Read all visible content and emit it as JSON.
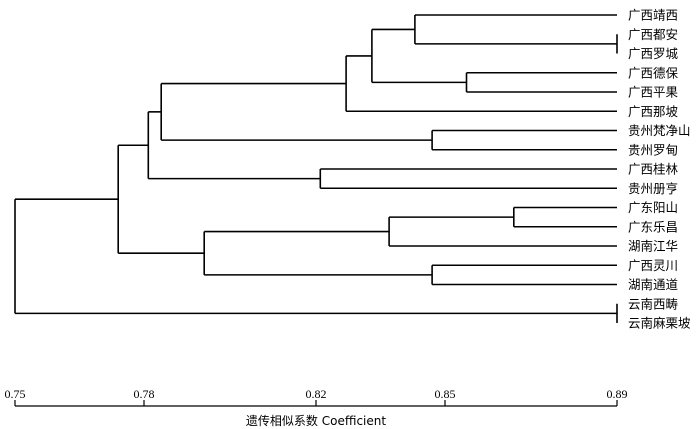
{
  "chart_data": {
    "type": "dendrogram",
    "xlabel": "遗传相似系数 Coefficient",
    "xlim": [
      0.75,
      0.89
    ],
    "ticks": [
      "0.75",
      "0.78",
      "0.82",
      "0.85",
      "0.89"
    ],
    "leaves": [
      "广西靖西",
      "广西都安",
      "广西罗城",
      "广西德保",
      "广西平果",
      "广西那坡",
      "贵州梵净山",
      "贵州罗甸",
      "广西桂林",
      "贵州册亨",
      "广东阳山",
      "广东乐昌",
      "湖南江华",
      "广西灵川",
      "湖南通道",
      "云南西畴",
      "云南麻栗坡"
    ],
    "merges": [
      {
        "id": "c1",
        "left": "广西都安",
        "right": "广西罗城",
        "height": 0.89
      },
      {
        "id": "c2",
        "left": "广西靖西",
        "right": "c1",
        "height": 0.843
      },
      {
        "id": "c3",
        "left": "广西德保",
        "right": "广西平果",
        "height": 0.855
      },
      {
        "id": "c4",
        "left": "c2",
        "right": "c3",
        "height": 0.833
      },
      {
        "id": "c5",
        "left": "c4",
        "right": "广西那坡",
        "height": 0.827
      },
      {
        "id": "c6",
        "left": "贵州梵净山",
        "right": "贵州罗甸",
        "height": 0.847
      },
      {
        "id": "c7",
        "left": "c5",
        "right": "c6",
        "height": 0.784
      },
      {
        "id": "c8",
        "left": "广西桂林",
        "right": "贵州册亨",
        "height": 0.821
      },
      {
        "id": "c9",
        "left": "c7",
        "right": "c8",
        "height": 0.781
      },
      {
        "id": "c10",
        "left": "广东阳山",
        "right": "广东乐昌",
        "height": 0.866
      },
      {
        "id": "c11",
        "left": "c10",
        "right": "湖南江华",
        "height": 0.837
      },
      {
        "id": "c12",
        "left": "广西灵川",
        "right": "湖南通道",
        "height": 0.847
      },
      {
        "id": "c13",
        "left": "c11",
        "right": "c12",
        "height": 0.794
      },
      {
        "id": "c14",
        "left": "c9",
        "right": "c13",
        "height": 0.774
      },
      {
        "id": "c15",
        "left": "云南西畴",
        "right": "云南麻栗坡",
        "height": 0.89
      },
      {
        "id": "c16",
        "left": "c14",
        "right": "c15",
        "height": 0.75
      }
    ]
  }
}
